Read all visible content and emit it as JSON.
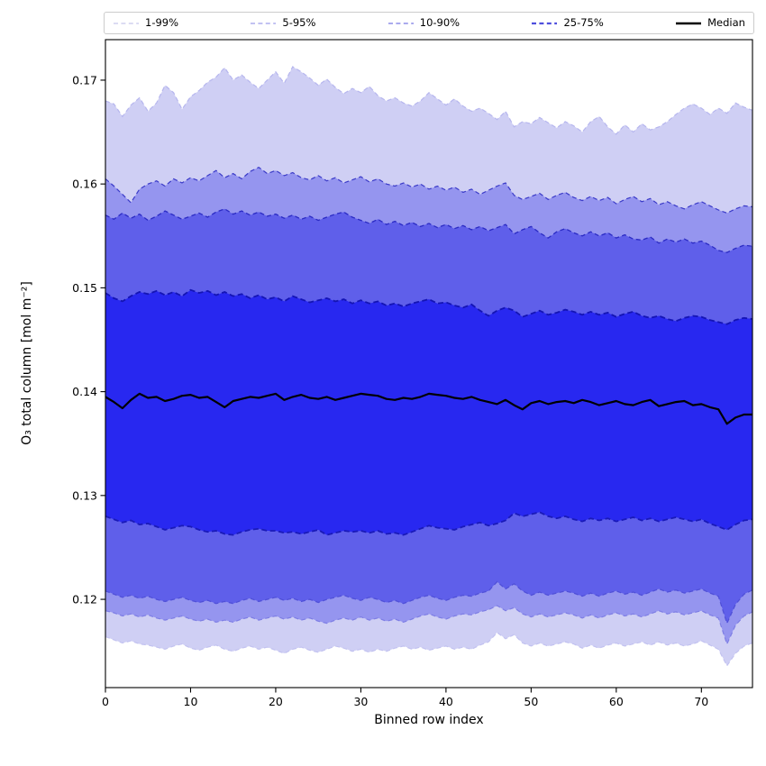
{
  "figure": {
    "background": "#ffffff"
  },
  "legend": {
    "items": [
      {
        "label": "1-99%",
        "color": "#c6c6ec",
        "dash": "5 3.4",
        "width": 1.2
      },
      {
        "label": "5-95%",
        "color": "#9d9de9",
        "dash": "5 3.4",
        "width": 1.2
      },
      {
        "label": "10-90%",
        "color": "#7777e2",
        "dash": "5 3.4",
        "width": 1.3
      },
      {
        "label": "25-75%",
        "color": "#4f4fdd",
        "dash": "5 3.4",
        "width": 2.2
      },
      {
        "label": "Median",
        "color": "#000000",
        "dash": "",
        "width": 2.5
      }
    ]
  },
  "chart_data": {
    "type": "area",
    "title": "",
    "xlabel": "Binned row index",
    "ylabel": "O₃ total column [mol m⁻²]",
    "xlim": [
      0,
      76
    ],
    "ylim": [
      0.1115,
      0.1739
    ],
    "xticks": [
      0,
      10,
      20,
      30,
      40,
      50,
      60,
      70
    ],
    "xtick_labels": [
      "0",
      "10",
      "20",
      "30",
      "40",
      "50",
      "60",
      "70"
    ],
    "yticks": [
      0.12,
      0.13,
      0.14,
      0.15,
      0.16,
      0.17
    ],
    "ytick_labels": [
      "0.12",
      "0.13",
      "0.14",
      "0.15",
      "0.16",
      "0.17"
    ],
    "grid": false,
    "legend_position": "top-outside",
    "x": [
      0,
      1,
      2,
      3,
      4,
      5,
      6,
      7,
      8,
      9,
      10,
      11,
      12,
      13,
      14,
      15,
      16,
      17,
      18,
      19,
      20,
      21,
      22,
      23,
      24,
      25,
      26,
      27,
      28,
      29,
      30,
      31,
      32,
      33,
      34,
      35,
      36,
      37,
      38,
      39,
      40,
      41,
      42,
      43,
      44,
      45,
      46,
      47,
      48,
      49,
      50,
      51,
      52,
      53,
      54,
      55,
      56,
      57,
      58,
      59,
      60,
      61,
      62,
      63,
      64,
      65,
      66,
      67,
      68,
      69,
      70,
      71,
      72,
      73,
      74,
      75,
      76
    ],
    "series": [
      {
        "name": "p99",
        "label": "99th percentile",
        "values": [
          0.168,
          0.1677,
          0.1665,
          0.1676,
          0.1683,
          0.167,
          0.1678,
          0.1695,
          0.1688,
          0.1672,
          0.1684,
          0.169,
          0.1698,
          0.1703,
          0.1712,
          0.17,
          0.1705,
          0.1698,
          0.1692,
          0.17,
          0.1708,
          0.1697,
          0.1713,
          0.1708,
          0.1702,
          0.1695,
          0.1701,
          0.1693,
          0.1687,
          0.1692,
          0.1688,
          0.1694,
          0.1685,
          0.168,
          0.1683,
          0.1678,
          0.1675,
          0.168,
          0.1688,
          0.1682,
          0.1676,
          0.1682,
          0.1675,
          0.167,
          0.1673,
          0.1668,
          0.1662,
          0.167,
          0.1655,
          0.166,
          0.1658,
          0.1664,
          0.1659,
          0.1654,
          0.166,
          0.1656,
          0.165,
          0.166,
          0.1665,
          0.1655,
          0.1648,
          0.1657,
          0.165,
          0.1658,
          0.1652,
          0.1655,
          0.166,
          0.1667,
          0.1673,
          0.1677,
          0.1673,
          0.1667,
          0.1673,
          0.1668,
          0.1678,
          0.1674,
          0.1671
        ]
      },
      {
        "name": "p95",
        "label": "95th percentile",
        "values": [
          0.1605,
          0.1598,
          0.159,
          0.1582,
          0.1595,
          0.16,
          0.1603,
          0.1598,
          0.1605,
          0.1601,
          0.1606,
          0.1603,
          0.1608,
          0.1613,
          0.1606,
          0.161,
          0.1605,
          0.1612,
          0.1616,
          0.161,
          0.1613,
          0.1608,
          0.1611,
          0.1606,
          0.1604,
          0.1608,
          0.1603,
          0.1606,
          0.1601,
          0.1604,
          0.1607,
          0.1602,
          0.1605,
          0.16,
          0.1598,
          0.1601,
          0.1597,
          0.16,
          0.1595,
          0.1598,
          0.1594,
          0.1597,
          0.1592,
          0.1595,
          0.159,
          0.1594,
          0.1598,
          0.1601,
          0.1589,
          0.1585,
          0.1588,
          0.1591,
          0.1585,
          0.1589,
          0.1592,
          0.1587,
          0.1584,
          0.1588,
          0.1584,
          0.1587,
          0.1581,
          0.1585,
          0.1588,
          0.1583,
          0.1586,
          0.158,
          0.1583,
          0.1579,
          0.1576,
          0.158,
          0.1583,
          0.1579,
          0.1575,
          0.1572,
          0.1576,
          0.1579,
          0.1578
        ]
      },
      {
        "name": "p90",
        "label": "90th percentile",
        "values": [
          0.157,
          0.1566,
          0.1572,
          0.1567,
          0.1571,
          0.1565,
          0.1569,
          0.1574,
          0.157,
          0.1566,
          0.1569,
          0.1572,
          0.1568,
          0.1573,
          0.1576,
          0.1571,
          0.1574,
          0.157,
          0.1573,
          0.1569,
          0.1571,
          0.1567,
          0.157,
          0.1566,
          0.1569,
          0.1565,
          0.1568,
          0.1571,
          0.1573,
          0.1568,
          0.1565,
          0.1562,
          0.1566,
          0.1561,
          0.1564,
          0.156,
          0.1563,
          0.1559,
          0.1562,
          0.1558,
          0.1561,
          0.1557,
          0.156,
          0.1556,
          0.1559,
          0.1555,
          0.1558,
          0.1561,
          0.1552,
          0.1556,
          0.1559,
          0.1553,
          0.1548,
          0.1554,
          0.1557,
          0.1553,
          0.155,
          0.1554,
          0.155,
          0.1553,
          0.1548,
          0.1551,
          0.1547,
          0.1546,
          0.1549,
          0.1543,
          0.1547,
          0.1544,
          0.1547,
          0.1543,
          0.1545,
          0.1541,
          0.1536,
          0.1534,
          0.1538,
          0.1541,
          0.154
        ]
      },
      {
        "name": "p75",
        "label": "75th percentile",
        "values": [
          0.1495,
          0.149,
          0.1487,
          0.1492,
          0.1496,
          0.1494,
          0.1497,
          0.1493,
          0.1496,
          0.1492,
          0.1498,
          0.1495,
          0.1497,
          0.1493,
          0.1496,
          0.1492,
          0.1494,
          0.149,
          0.1493,
          0.1489,
          0.1491,
          0.1487,
          0.1492,
          0.1489,
          0.1486,
          0.1488,
          0.149,
          0.1487,
          0.1489,
          0.1485,
          0.1488,
          0.1485,
          0.1487,
          0.1483,
          0.1485,
          0.1482,
          0.1485,
          0.1487,
          0.1489,
          0.1485,
          0.1486,
          0.1483,
          0.1481,
          0.1484,
          0.1478,
          0.1473,
          0.1478,
          0.1481,
          0.1478,
          0.1472,
          0.1475,
          0.1478,
          0.1474,
          0.1476,
          0.1479,
          0.1477,
          0.1474,
          0.1477,
          0.1474,
          0.1476,
          0.1472,
          0.1475,
          0.1477,
          0.1473,
          0.1471,
          0.1473,
          0.147,
          0.1468,
          0.1471,
          0.1473,
          0.1472,
          0.1469,
          0.1467,
          0.1465,
          0.1469,
          0.1471,
          0.147
        ]
      },
      {
        "name": "median",
        "label": "Median",
        "values": [
          0.1395,
          0.139,
          0.1384,
          0.1392,
          0.1398,
          0.1394,
          0.1395,
          0.1391,
          0.1393,
          0.1396,
          0.1397,
          0.1394,
          0.1395,
          0.139,
          0.1385,
          0.1391,
          0.1393,
          0.1395,
          0.1394,
          0.1396,
          0.1398,
          0.1392,
          0.1395,
          0.1397,
          0.1394,
          0.1393,
          0.1395,
          0.1392,
          0.1394,
          0.1396,
          0.1398,
          0.1397,
          0.1396,
          0.1393,
          0.1392,
          0.1394,
          0.1393,
          0.1395,
          0.1398,
          0.1397,
          0.1396,
          0.1394,
          0.1393,
          0.1395,
          0.1392,
          0.139,
          0.1388,
          0.1392,
          0.1387,
          0.1383,
          0.1389,
          0.1391,
          0.1388,
          0.139,
          0.1391,
          0.1389,
          0.1392,
          0.139,
          0.1387,
          0.1389,
          0.1391,
          0.1388,
          0.1387,
          0.139,
          0.1392,
          0.1386,
          0.1388,
          0.139,
          0.1391,
          0.1387,
          0.1388,
          0.1385,
          0.1383,
          0.1369,
          0.1375,
          0.1378,
          0.1378
        ]
      },
      {
        "name": "p25",
        "label": "25th percentile",
        "values": [
          0.128,
          0.1277,
          0.1274,
          0.1276,
          0.1272,
          0.1273,
          0.127,
          0.1267,
          0.1269,
          0.1271,
          0.127,
          0.1267,
          0.1265,
          0.1266,
          0.1263,
          0.1262,
          0.1265,
          0.1267,
          0.1268,
          0.1266,
          0.1266,
          0.1264,
          0.1265,
          0.1263,
          0.1265,
          0.1267,
          0.1262,
          0.1264,
          0.1266,
          0.1265,
          0.1266,
          0.1264,
          0.1266,
          0.1263,
          0.1264,
          0.1262,
          0.1265,
          0.1268,
          0.1271,
          0.1269,
          0.1268,
          0.1267,
          0.127,
          0.1272,
          0.1274,
          0.1271,
          0.1273,
          0.1276,
          0.1283,
          0.128,
          0.1282,
          0.1284,
          0.128,
          0.1278,
          0.128,
          0.1277,
          0.1275,
          0.1278,
          0.1276,
          0.1278,
          0.1275,
          0.1277,
          0.1279,
          0.1276,
          0.1278,
          0.1275,
          0.1277,
          0.1279,
          0.1277,
          0.1275,
          0.1277,
          0.1273,
          0.127,
          0.1267,
          0.1272,
          0.1276,
          0.1277
        ]
      },
      {
        "name": "p10",
        "label": "10th percentile",
        "values": [
          0.1208,
          0.1205,
          0.1202,
          0.1204,
          0.1201,
          0.1203,
          0.12,
          0.1198,
          0.12,
          0.1202,
          0.1199,
          0.1197,
          0.1199,
          0.1196,
          0.1198,
          0.1196,
          0.1199,
          0.1201,
          0.1198,
          0.12,
          0.1202,
          0.1199,
          0.1201,
          0.1198,
          0.12,
          0.1197,
          0.12,
          0.1202,
          0.1204,
          0.1201,
          0.1199,
          0.1202,
          0.12,
          0.1197,
          0.1199,
          0.1196,
          0.1199,
          0.1202,
          0.1204,
          0.1201,
          0.1199,
          0.1202,
          0.1204,
          0.1203,
          0.1206,
          0.1208,
          0.1217,
          0.121,
          0.1215,
          0.1208,
          0.1204,
          0.1207,
          0.1204,
          0.1206,
          0.1208,
          0.1206,
          0.1203,
          0.1206,
          0.1203,
          0.1206,
          0.1208,
          0.1205,
          0.1207,
          0.1204,
          0.1207,
          0.121,
          0.1207,
          0.1209,
          0.1206,
          0.1208,
          0.121,
          0.1206,
          0.1203,
          0.1177,
          0.1195,
          0.1205,
          0.1209
        ]
      },
      {
        "name": "p5",
        "label": "5th percentile",
        "values": [
          0.1189,
          0.1187,
          0.1184,
          0.1186,
          0.1183,
          0.1185,
          0.1182,
          0.118,
          0.1182,
          0.1184,
          0.1181,
          0.1179,
          0.1181,
          0.1178,
          0.118,
          0.1178,
          0.1181,
          0.1183,
          0.118,
          0.1182,
          0.1184,
          0.1181,
          0.1183,
          0.118,
          0.1182,
          0.1179,
          0.1177,
          0.118,
          0.1182,
          0.118,
          0.1183,
          0.118,
          0.1182,
          0.1179,
          0.1181,
          0.1178,
          0.1181,
          0.1184,
          0.1186,
          0.1183,
          0.1181,
          0.1184,
          0.1186,
          0.1185,
          0.1188,
          0.119,
          0.1194,
          0.1189,
          0.1192,
          0.1186,
          0.1183,
          0.1186,
          0.1183,
          0.1185,
          0.1187,
          0.1185,
          0.1182,
          0.1185,
          0.1182,
          0.1185,
          0.1187,
          0.1184,
          0.1186,
          0.1183,
          0.1186,
          0.1189,
          0.1186,
          0.1188,
          0.1185,
          0.1187,
          0.1189,
          0.1185,
          0.1182,
          0.1157,
          0.1175,
          0.1184,
          0.1188
        ]
      },
      {
        "name": "p1",
        "label": "1st percentile",
        "values": [
          0.1164,
          0.1161,
          0.1158,
          0.116,
          0.1157,
          0.1156,
          0.1154,
          0.1152,
          0.1155,
          0.1157,
          0.1153,
          0.1151,
          0.1154,
          0.1156,
          0.1152,
          0.115,
          0.1153,
          0.1155,
          0.1152,
          0.1154,
          0.1151,
          0.1148,
          0.1152,
          0.1154,
          0.1151,
          0.1149,
          0.1152,
          0.1155,
          0.1153,
          0.115,
          0.1152,
          0.1149,
          0.1152,
          0.115,
          0.1153,
          0.1155,
          0.1152,
          0.1154,
          0.1151,
          0.1153,
          0.1155,
          0.1152,
          0.1154,
          0.1152,
          0.1156,
          0.1159,
          0.1168,
          0.1162,
          0.1166,
          0.1158,
          0.1155,
          0.1158,
          0.1155,
          0.1157,
          0.1159,
          0.1157,
          0.1153,
          0.1156,
          0.1153,
          0.1156,
          0.1158,
          0.1155,
          0.1157,
          0.1159,
          0.1156,
          0.1159,
          0.1156,
          0.1158,
          0.1155,
          0.1157,
          0.116,
          0.1156,
          0.1152,
          0.1136,
          0.1148,
          0.1155,
          0.1158
        ]
      }
    ],
    "bands": [
      {
        "label": "1-99%",
        "upper": "p99",
        "lower": "p1",
        "fill": "#cfcff4",
        "edge_upper": "#b6b6ee",
        "edge_lower": "#c2c2f0",
        "edge_width": 1.2,
        "dash": "5 3.4"
      },
      {
        "label": "5-95%",
        "upper": "p95",
        "lower": "p5",
        "fill": "#9595ef",
        "edge_upper": "#3a3ac8",
        "edge_lower": "#7d7de4",
        "edge_width": 1.2,
        "dash": "5 3.4"
      },
      {
        "label": "10-90%",
        "upper": "p90",
        "lower": "p10",
        "fill": "#5f5fea",
        "edge_upper": "#2a2ac4",
        "edge_lower": "#5050d8",
        "edge_width": 1.3,
        "dash": "5 3.4"
      },
      {
        "label": "25-75%",
        "upper": "p75",
        "lower": "p25",
        "fill": "#2828f0",
        "edge_upper": "#1414b4",
        "edge_lower": "#1a1ab8",
        "edge_width": 1.8,
        "dash": "6 3.5"
      }
    ],
    "median_line": {
      "series": "median",
      "label": "Median",
      "color": "#000000",
      "width": 2.2
    }
  }
}
